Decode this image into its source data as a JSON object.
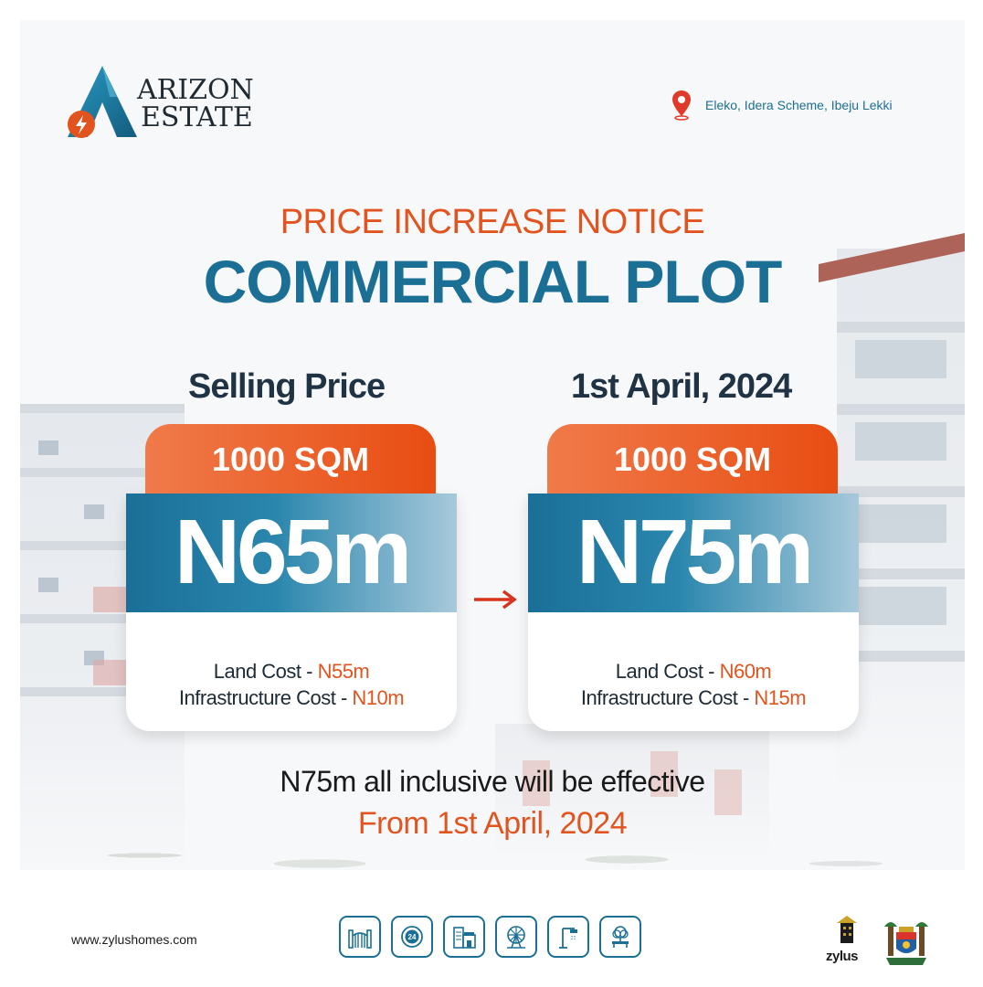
{
  "brand": {
    "name_line1": "ARIZON",
    "name_line2": "ESTATE"
  },
  "location": "Eleko, Idera Scheme, Ibeju Lekki",
  "headline": "PRICE INCREASE NOTICE",
  "subheadline": "COMMERCIAL PLOT",
  "current": {
    "heading": "Selling Price",
    "size": "1000 SQM",
    "price": "N65m",
    "land_label": "Land Cost - ",
    "land_value": "N55m",
    "infra_label": "Infrastructure Cost - ",
    "infra_value": "N10m"
  },
  "new": {
    "heading": "1st April, 2024",
    "size": "1000 SQM",
    "price": "N75m",
    "land_label": "Land Cost - ",
    "land_value": "N60m",
    "infra_label": "Infrastructure Cost - ",
    "infra_value": "N15m"
  },
  "footer_line1": "N75m all inclusive will be effective",
  "footer_line2": "From 1st April, 2024",
  "website": "www.zylushomes.com",
  "partner": "zylus",
  "amenities": [
    "gate-icon",
    "24-hour-security-icon",
    "mall-icon",
    "amusement-park-icon",
    "street-light-icon",
    "park-icon"
  ],
  "colors": {
    "orange": "#E2541F",
    "blue": "#1B6F95",
    "dark": "#1F3344"
  }
}
